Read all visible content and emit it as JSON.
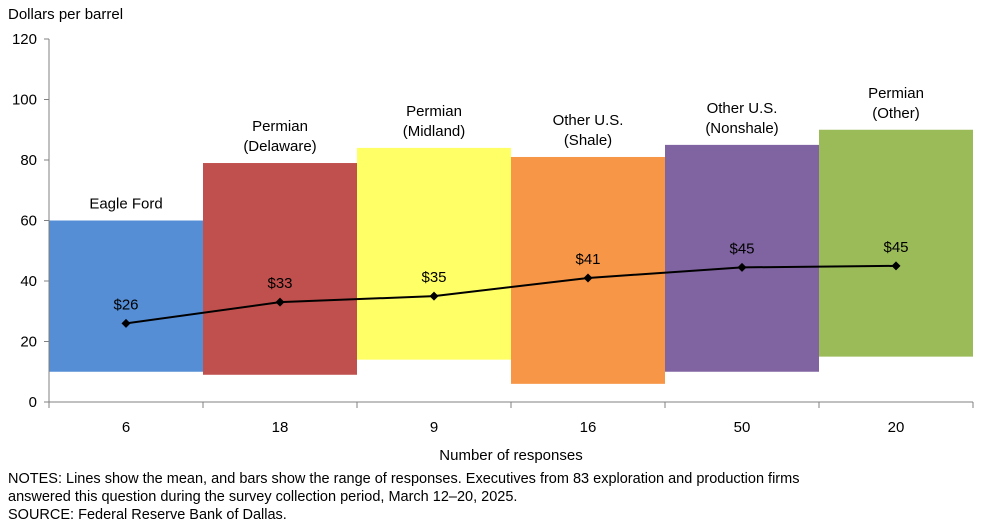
{
  "chart_data": {
    "type": "bar",
    "ylabel": "Dollars per barrel",
    "xlabel": "Number of responses",
    "ylim": [
      0,
      120
    ],
    "yticks": [
      0,
      20,
      40,
      60,
      80,
      100,
      120
    ],
    "categories": [
      "6",
      "18",
      "9",
      "16",
      "50",
      "20"
    ],
    "bar_labels": [
      [
        "Eagle Ford"
      ],
      [
        "Permian",
        "(Delaware)"
      ],
      [
        "Permian",
        "(Midland)"
      ],
      [
        "Other U.S.",
        "(Shale)"
      ],
      [
        "Other U.S.",
        "(Nonshale)"
      ],
      [
        "Permian",
        "(Other)"
      ]
    ],
    "ranges": [
      [
        10,
        60
      ],
      [
        9,
        79
      ],
      [
        14,
        84
      ],
      [
        6,
        81
      ],
      [
        10,
        85
      ],
      [
        15,
        90
      ]
    ],
    "mean_values": [
      26,
      33,
      35,
      41,
      44.5,
      45
    ],
    "mean_labels": [
      "$26",
      "$33",
      "$35",
      "$41",
      "$45",
      "$45"
    ],
    "colors": [
      "#558ed5",
      "#c0504d",
      "#ffff66",
      "#f79646",
      "#8064a2",
      "#9bbb59"
    ],
    "line_color": "#000000"
  },
  "notes": {
    "line1": "NOTES:  Lines show the mean, and bars show the range of responses. Executives from 83 exploration and production firms",
    "line2": "answered this question during the survey collection period, March 12–20, 2025.",
    "source": "SOURCE:  Federal Reserve Bank of Dallas."
  }
}
